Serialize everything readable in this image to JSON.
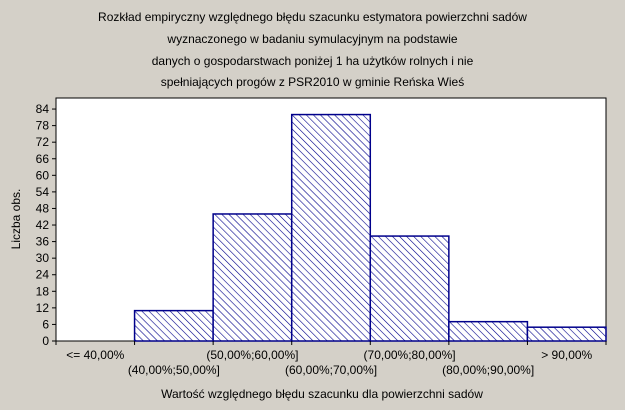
{
  "chart_data": {
    "type": "bar",
    "title_lines": [
      "Rozkład empiryczny względnego błędu szacunku estymatora powierzchni sadów",
      "wyznaczonego w badaniu symulacyjnym na podstawie",
      "danych o gospodarstwach poniżej 1 ha użytków rolnych i nie",
      "spełniających progów z PSR2010 w gminie Reńska Wieś"
    ],
    "xlabel": "Wartość względnego błędu szacunku dla powierzchni sadów",
    "ylabel": "Liczba obs.",
    "categories": [
      "<= 40,00%",
      "(40,00%;50,00%]",
      "(50,00%;60,00%]",
      "(60,00%;70,00%]",
      "(70,00%;80,00%]",
      "(80,00%;90,00%]",
      "> 90,00%"
    ],
    "values": [
      0,
      11,
      46,
      82,
      38,
      7,
      5
    ],
    "ylim": [
      0,
      88
    ],
    "yticks": [
      0,
      6,
      12,
      18,
      24,
      30,
      36,
      42,
      48,
      54,
      60,
      66,
      72,
      78,
      84
    ],
    "grid": false,
    "legend": "none",
    "colors": {
      "background": "#d4d0c8",
      "plot_background": "#ffffff",
      "bar_stroke": "#00008b",
      "hatch": "#00008b"
    }
  }
}
